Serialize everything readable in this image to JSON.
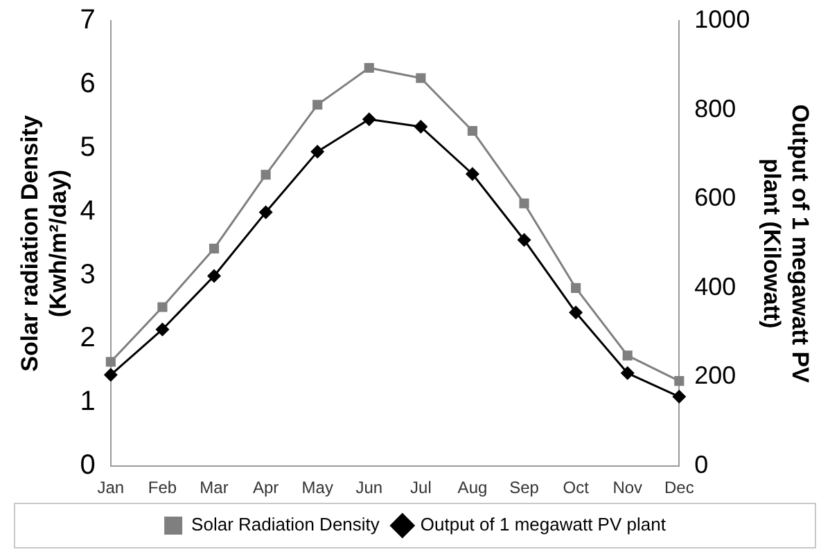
{
  "chart_data": {
    "type": "line",
    "ylabel": "Solar radiation Density\n(Kwh/m²/day)",
    "y2label": "Output of 1 megawatt PV\nplant (Kilowatt)",
    "categories": [
      "Jan",
      "Feb",
      "Mar",
      "Apr",
      "May",
      "Jun",
      "Jul",
      "Aug",
      "Sep",
      "Oct",
      "Nov",
      "Dec"
    ],
    "series": [
      {
        "name": "Solar Radiation Density",
        "color": "#7f7f7f",
        "marker": "square",
        "values": [
          1.64,
          2.5,
          3.42,
          4.58,
          5.68,
          6.26,
          6.1,
          5.27,
          4.13,
          2.8,
          1.74,
          1.34
        ]
      },
      {
        "name": "Output of 1 megawatt PV plant",
        "color": "#000000",
        "marker": "diamond",
        "axis": "y2",
        "values": [
          205,
          307,
          427,
          570,
          706,
          779,
          762,
          656,
          508,
          345,
          209,
          156
        ]
      }
    ],
    "ylim": [
      0,
      7
    ],
    "yticks": [
      0,
      1,
      2,
      3,
      4,
      5,
      6,
      7
    ],
    "y2lim": [
      0,
      1000
    ],
    "y2ticks": [
      0,
      200,
      400,
      600,
      800,
      1000
    ],
    "grid": false,
    "legend": "bottom",
    "line_style": "solid"
  }
}
